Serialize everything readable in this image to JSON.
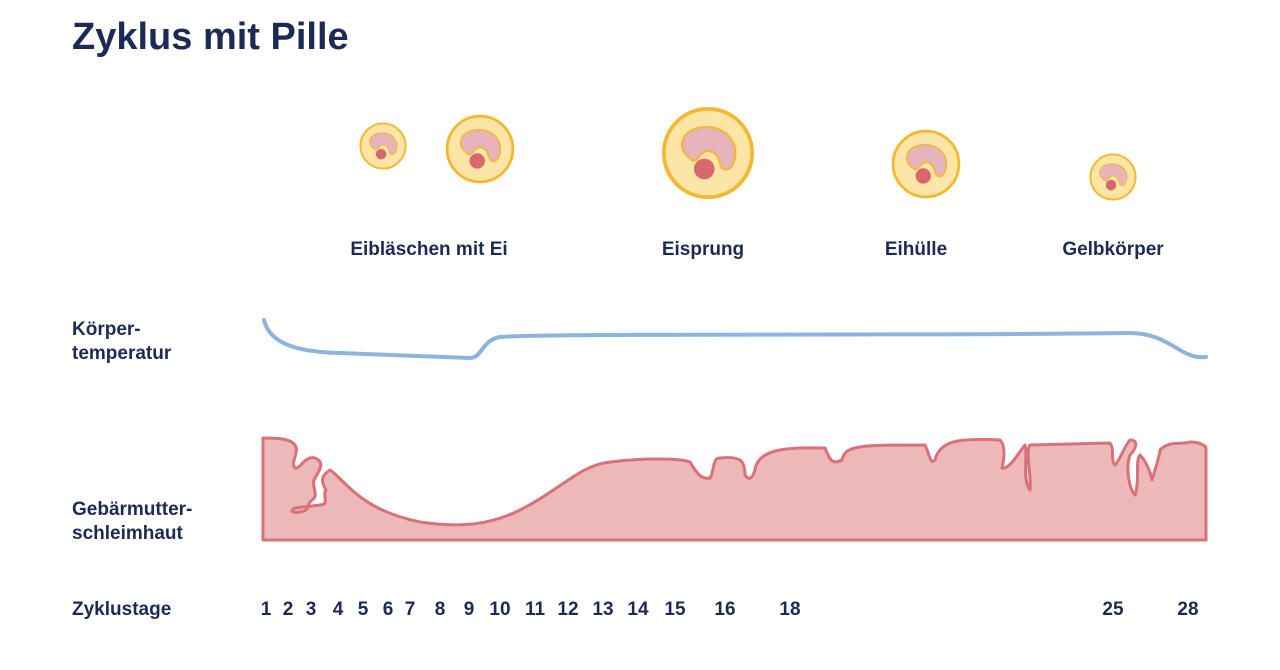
{
  "title": "Zyklus mit Pille",
  "stage_labels": [
    "Eibläschen mit Ei",
    "Eisprung",
    "Eihülle",
    "Gelbkörper"
  ],
  "row_labels": {
    "temperature": [
      "Körper-",
      "temperatur"
    ],
    "endometrium": [
      "Gebärmutter-",
      "schleimhaut"
    ],
    "days": "Zyklustage"
  },
  "days": [
    "1",
    "2",
    "3",
    "4",
    "5",
    "6",
    "7",
    "8",
    "9",
    "10",
    "11",
    "12",
    "13",
    "14",
    "15",
    "16",
    "18",
    "25",
    "28"
  ],
  "colors": {
    "text": "#1d2a55",
    "temperature_line": "#8cb4e0",
    "endometrium_fill": "#ecb8b8",
    "endometrium_stroke": "#d9707a",
    "follicle_fill": "#fde5a8",
    "follicle_stroke": "#f2b830",
    "crescent_fill": "#e8b4bc",
    "egg": "#d9686e"
  }
}
